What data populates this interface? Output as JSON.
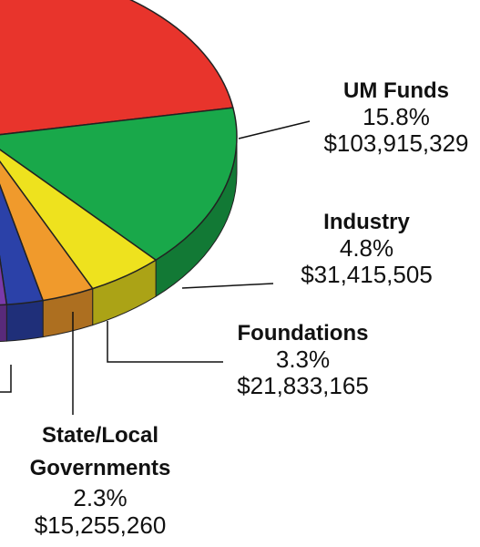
{
  "chart_data": {
    "type": "pie",
    "categories": [
      null,
      "UM Funds",
      "Industry",
      "Foundations",
      "State/Local Governments",
      null
    ],
    "values": [
      67.8,
      15.8,
      4.8,
      3.3,
      2.3,
      6.0
    ],
    "value_labels": [
      null,
      "15.8%",
      "4.8%",
      "3.3%",
      "2.3%",
      null
    ],
    "amounts": [
      null,
      103915329,
      31415505,
      21833165,
      15255260,
      null
    ],
    "amount_labels": [
      null,
      "$103,915,329",
      "$31,415,505",
      "$21,833,165",
      "$15,255,260",
      null
    ],
    "colors": [
      "#e8342c",
      "#19a84a",
      "#eee21e",
      "#f09a2c",
      "#2b41a8",
      "#7b3aa9"
    ]
  }
}
